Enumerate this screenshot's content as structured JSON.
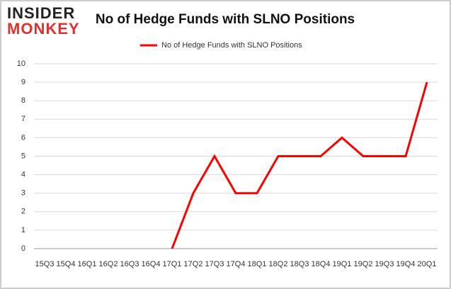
{
  "logo": [
    "INSIDER",
    "MONKEY"
  ],
  "chart_data": {
    "type": "line",
    "title": "No of Hedge Funds with SLNO Positions",
    "categories": [
      "15Q3",
      "15Q4",
      "16Q1",
      "16Q2",
      "16Q3",
      "16Q4",
      "17Q1",
      "17Q2",
      "17Q3",
      "17Q4",
      "18Q1",
      "18Q2",
      "18Q3",
      "18Q4",
      "19Q1",
      "19Q2",
      "19Q3",
      "19Q4",
      "20Q1"
    ],
    "series": [
      {
        "name": "No of Hedge Funds with SLNO Positions",
        "color": "#ff0000",
        "values": [
          null,
          null,
          null,
          null,
          null,
          null,
          0,
          3,
          5,
          3,
          3,
          5,
          5,
          5,
          6,
          5,
          5,
          5,
          9
        ]
      }
    ],
    "ylim": [
      0,
      10
    ],
    "yticks": [
      0,
      1,
      2,
      3,
      4,
      5,
      6,
      7,
      8,
      9,
      10
    ],
    "grid": true,
    "legend": "top"
  }
}
